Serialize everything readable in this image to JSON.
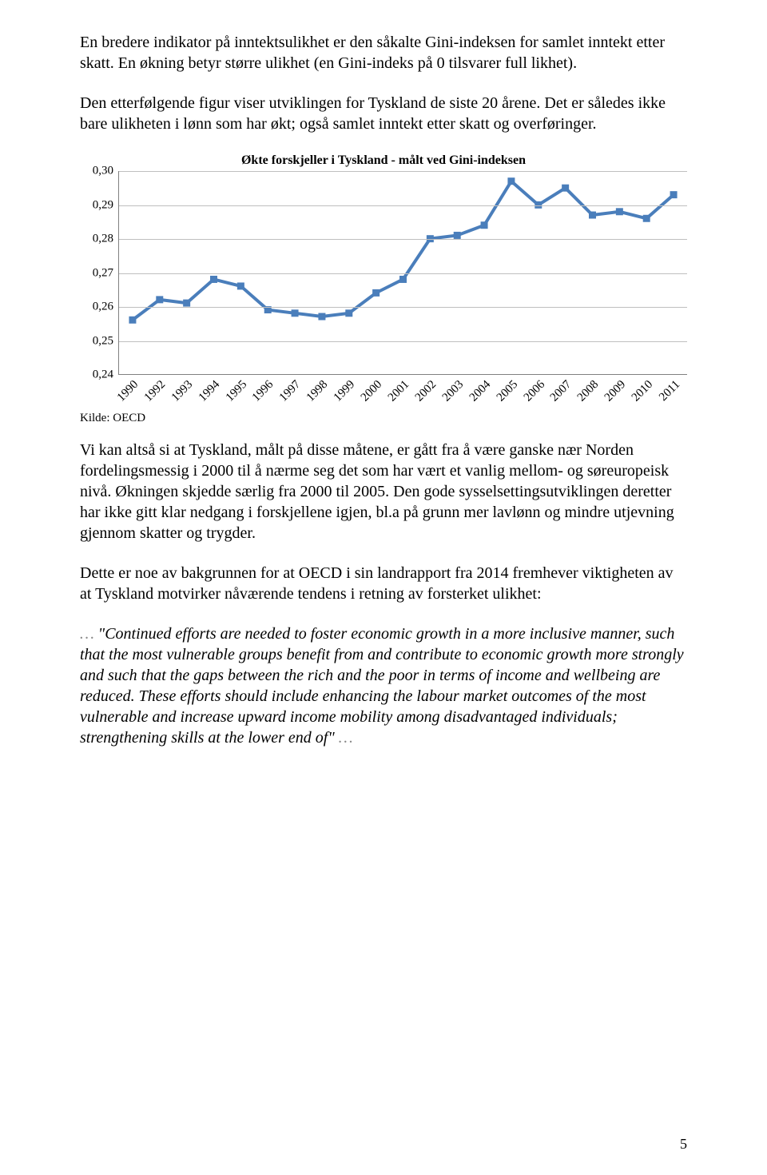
{
  "para1": "En bredere indikator på inntektsulikhet er den såkalte Gini-indeksen for samlet inntekt etter skatt. En økning betyr større ulikhet (en Gini-indeks på 0 tilsvarer full likhet).",
  "para2": "Den etterfølgende figur viser utviklingen for Tyskland de siste 20 årene. Det er således ikke bare ulikheten i lønn som har økt; også samlet inntekt etter skatt og overføringer.",
  "chart": {
    "type": "line",
    "title": "Økte forskjeller i Tyskland - målt ved Gini-indeksen",
    "title_fontsize": 16,
    "ylim": [
      0.24,
      0.3
    ],
    "ytick_step": 0.01,
    "y_ticks": [
      "0,30",
      "0,29",
      "0,28",
      "0,27",
      "0,26",
      "0,25",
      "0,24"
    ],
    "x_labels": [
      "1990",
      "1992",
      "1993",
      "1994",
      "1995",
      "1996",
      "1997",
      "1998",
      "1999",
      "2000",
      "2001",
      "2002",
      "2003",
      "2004",
      "2005",
      "2006",
      "2007",
      "2008",
      "2009",
      "2010",
      "2011"
    ],
    "values": [
      0.256,
      0.262,
      0.261,
      0.268,
      0.266,
      0.259,
      0.258,
      0.257,
      0.258,
      0.264,
      0.268,
      0.28,
      0.281,
      0.284,
      0.297,
      0.29,
      0.295,
      0.287,
      0.288,
      0.286,
      0.293
    ],
    "line_color": "#4a7ebb",
    "marker_color": "#4a7ebb",
    "line_width": 4,
    "marker_size": 9,
    "marker_shape": "square",
    "grid_color": "#bfbfbf",
    "axis_color": "#808080",
    "background_color": "#ffffff",
    "label_fontsize": 15,
    "x_label_rotation": -45
  },
  "source": "Kilde: OECD",
  "para3": "Vi kan altså si at Tyskland, målt på disse måtene, er gått fra å være ganske nær Norden fordelingsmessig i 2000 til å nærme seg det som har vært et vanlig mellom- og søreuropeisk nivå. Økningen skjedde særlig fra 2000 til 2005. Den gode sysselsettingsutviklingen deretter har ikke gitt klar nedgang i forskjellene igjen, bl.a på grunn mer lavlønn og mindre utjevning gjennom skatter og trygder.",
  "para4": "Dette er noe av bakgrunnen for at OECD i sin landrapport fra 2014 fremhever viktigheten av at Tyskland motvirker nåværende tendens i retning av forsterket ulikhet:",
  "quote": {
    "leading_ellipsis": "…",
    "text": "\"Continued efforts are needed to foster economic growth in a more inclusive manner, such that the most vulnerable groups benefit from and contribute to economic growth more strongly and such that the gaps between the rich and the poor in terms of income and wellbeing are reduced. These efforts should include enhancing the labour market outcomes of the most vulnerable and increase upward income mobility among disadvantaged individuals; strengthening skills at the lower end of\"",
    "trailing_ellipsis": "…"
  },
  "page_number": "5"
}
